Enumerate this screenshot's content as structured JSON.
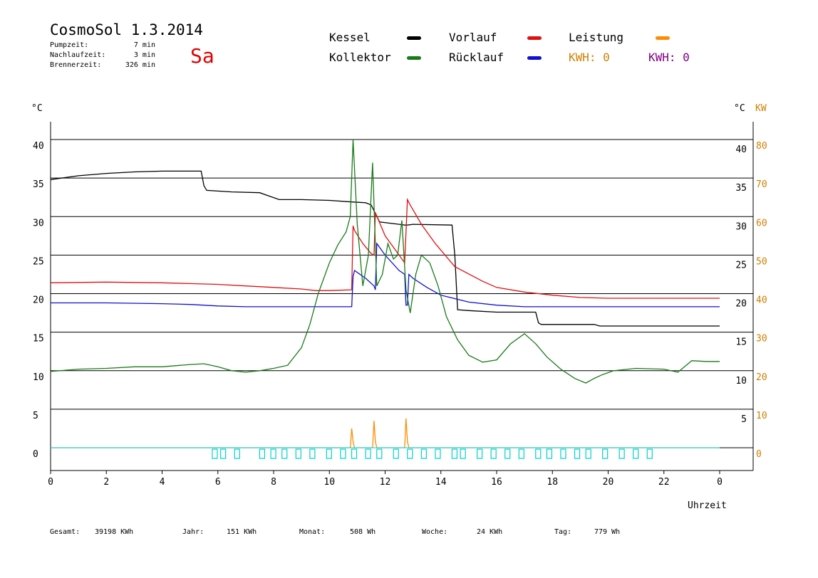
{
  "header": {
    "title": "CosmoSol 1.3.2014",
    "day": "Sa",
    "pumpzeit_label": "Pumpzeit:",
    "pumpzeit_value": "7 min",
    "nachlauf_label": "Nachlaufzeit:",
    "nachlauf_value": "3 min",
    "brenner_label": "Brennerzeit:",
    "brenner_value": "326 min"
  },
  "legend": {
    "kessel": "Kessel",
    "kollektor": "Kollektor",
    "vorlauf": "Vorlauf",
    "ruecklauf": "Rücklauf",
    "leistung": "Leistung",
    "kwh_orange": "KWH: 0",
    "kwh_purple": "KWH: 0"
  },
  "colors": {
    "kessel": "#000000",
    "kollektor": "#1a7a1a",
    "vorlauf": "#e01010",
    "ruecklauf": "#1010d0",
    "leistung": "#ff8c00",
    "purple": "#800080",
    "cyan": "#00d0d0",
    "axis_orange": "#d08000"
  },
  "footer": {
    "gesamt_label": "Gesamt:",
    "gesamt_value": "39198 KWh",
    "jahr_label": "Jahr:",
    "jahr_value": "151 KWh",
    "monat_label": "Monat:",
    "monat_value": "508 Wh",
    "woche_label": "Woche:",
    "woche_value": "24 KWh",
    "tag_label": "Tag:",
    "tag_value": "779 Wh"
  },
  "chart_data": {
    "type": "line",
    "ylabel_left": "°C",
    "ylabel_right": "°C",
    "ylabel_right_kw": "KW",
    "xlabel": "Uhrzeit",
    "x_ticks": [
      "0",
      "2",
      "4",
      "6",
      "8",
      "10",
      "12",
      "14",
      "16",
      "18",
      "20",
      "22",
      "0"
    ],
    "y_left_ticks": [
      "40",
      "35",
      "30",
      "25",
      "20",
      "15",
      "10",
      "5",
      "0"
    ],
    "y_right_c_ticks": [
      "40",
      "35",
      "30",
      "25",
      "20",
      "15",
      "10",
      "5"
    ],
    "y_right_kw_ticks": [
      "80",
      "70",
      "60",
      "50",
      "40",
      "30",
      "20",
      "10",
      "0"
    ],
    "xlim": [
      0,
      24
    ],
    "ylim": [
      -3,
      40
    ],
    "grid": true,
    "series": [
      {
        "name": "Kessel",
        "color": "#000000",
        "x": [
          0,
          1,
          2,
          3,
          4,
          5.4,
          5.5,
          5.6,
          6.5,
          7.5,
          8.2,
          9,
          10,
          10.8,
          11.3,
          11.5,
          11.8,
          12.5,
          12.7,
          12.8,
          13,
          14.4,
          14.5,
          14.6,
          15,
          16,
          17.4,
          17.5,
          17.6,
          18.5,
          19.5,
          19.7,
          20.5,
          22,
          24
        ],
        "values": [
          34.8,
          35.3,
          35.6,
          35.8,
          35.9,
          35.9,
          34,
          33.4,
          33.2,
          33.1,
          32.2,
          32.2,
          32.1,
          31.9,
          31.8,
          31.5,
          29.3,
          29,
          28.9,
          28.9,
          29,
          28.9,
          25,
          17.9,
          17.8,
          17.6,
          17.6,
          16.2,
          16.0,
          16.0,
          16.0,
          15.8,
          15.8,
          15.8,
          15.8
        ]
      },
      {
        "name": "Vorlauf",
        "color": "#e01010",
        "x": [
          0,
          2,
          4,
          5,
          6,
          7,
          8,
          9,
          9.5,
          10,
          10.8,
          10.85,
          10.9,
          11.2,
          11.5,
          11.6,
          11.65,
          12,
          12.5,
          12.7,
          12.8,
          12.9,
          13.3,
          13.8,
          14.5,
          15.5,
          16,
          17,
          18,
          19,
          20,
          21,
          22,
          23,
          24
        ],
        "values": [
          21.4,
          21.5,
          21.4,
          21.3,
          21.2,
          21,
          20.8,
          20.6,
          20.4,
          20.4,
          20.5,
          28.8,
          28.2,
          26.5,
          25.2,
          25,
          30.5,
          27.5,
          25,
          24,
          32.2,
          31.5,
          29,
          26.5,
          23.5,
          21.6,
          20.8,
          20.2,
          19.8,
          19.5,
          19.4,
          19.4,
          19.4,
          19.4,
          19.4
        ]
      },
      {
        "name": "Rücklauf",
        "color": "#1010d0",
        "x": [
          0,
          2,
          4,
          5,
          6,
          7,
          8,
          9,
          10,
          10.8,
          10.85,
          10.9,
          11.3,
          11.6,
          11.65,
          11.7,
          12,
          12.5,
          12.7,
          12.75,
          12.8,
          12.85,
          13,
          13.5,
          14,
          15,
          16,
          17,
          18,
          19,
          20,
          21,
          22,
          23,
          24
        ],
        "values": [
          18.8,
          18.8,
          18.7,
          18.6,
          18.4,
          18.3,
          18.3,
          18.3,
          18.3,
          18.3,
          22.2,
          23,
          22,
          21,
          20.5,
          26.5,
          25,
          23,
          22.5,
          18.5,
          18.5,
          22.5,
          22,
          20.8,
          19.8,
          18.9,
          18.5,
          18.3,
          18.3,
          18.3,
          18.3,
          18.3,
          18.3,
          18.3,
          18.3
        ]
      },
      {
        "name": "Kollektor",
        "color": "#1a7a1a",
        "x": [
          0,
          1,
          2,
          3,
          4,
          5,
          5.5,
          6,
          6.5,
          7,
          7.5,
          8,
          8.5,
          9,
          9.3,
          9.6,
          10,
          10.3,
          10.6,
          10.75,
          10.85,
          11,
          11.2,
          11.4,
          11.55,
          11.7,
          11.9,
          12.1,
          12.3,
          12.45,
          12.6,
          12.75,
          12.9,
          13.1,
          13.3,
          13.6,
          13.9,
          14.2,
          14.6,
          15,
          15.5,
          16,
          16.5,
          17,
          17.4,
          17.8,
          18.3,
          18.8,
          19.2,
          19.5,
          19.8,
          20.2,
          21,
          22,
          22.5,
          23,
          23.5,
          24
        ],
        "values": [
          9.9,
          10.2,
          10.3,
          10.5,
          10.5,
          10.8,
          10.9,
          10.5,
          10,
          9.8,
          10,
          10.3,
          10.7,
          13,
          16,
          20,
          24,
          26.3,
          28,
          30,
          40,
          29,
          21,
          25,
          37,
          21,
          22.5,
          26.5,
          24.5,
          25,
          29.5,
          20.5,
          17.5,
          22.5,
          25,
          24,
          21,
          17,
          14,
          12,
          11.1,
          11.4,
          13.5,
          14.8,
          13.5,
          11.8,
          10.2,
          9,
          8.4,
          9,
          9.5,
          10,
          10.3,
          10.2,
          9.8,
          11.3,
          11.2,
          11.2
        ]
      },
      {
        "name": "Leistung",
        "color": "#ff8c00",
        "x": [
          0,
          10.7,
          10.75,
          10.8,
          10.85,
          10.9,
          11.5,
          11.55,
          11.6,
          11.65,
          11.7,
          12.65,
          12.7,
          12.75,
          12.8,
          12.85,
          24
        ],
        "values": [
          0,
          0,
          0,
          2.5,
          0.8,
          0,
          0,
          0,
          3.5,
          0.8,
          0,
          0,
          0,
          3.8,
          0.8,
          0,
          0
        ]
      }
    ]
  }
}
